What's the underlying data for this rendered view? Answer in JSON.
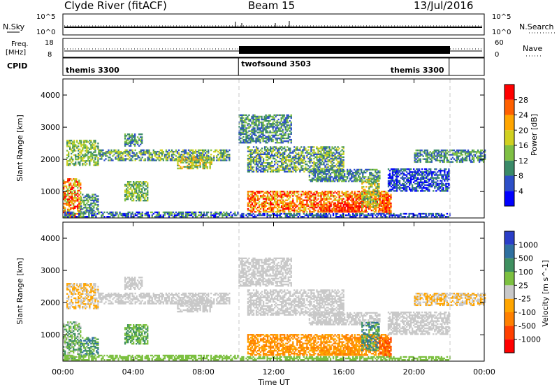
{
  "chart_data": {
    "type": "heatmap",
    "header": {
      "station": "Clyde River (fitACF)",
      "beam": "Beam 15",
      "date": "13/Jul/2016"
    },
    "nsky_panel": {
      "left_label": "N.Sky",
      "left_ticks": [
        "10^5",
        "10^0"
      ],
      "right_label": "N.Search",
      "right_ticks": [
        "10^5",
        "10^0"
      ]
    },
    "freq_panel": {
      "left_label_1": "Freq.",
      "left_label_2": "[MHz]",
      "left_ticks": [
        "18",
        "8"
      ],
      "right_label": "Nave",
      "right_ticks": [
        "60",
        "0"
      ]
    },
    "cpid_panel": {
      "label": "CPID",
      "modes": [
        {
          "name": "themis 3300",
          "start_h": 0,
          "end_h": 10
        },
        {
          "name": "twofsound 3503",
          "start_h": 10,
          "end_h": 22
        },
        {
          "name": "themis 3300",
          "start_h": 22,
          "end_h": 24
        }
      ]
    },
    "x": {
      "label": "Time UT",
      "range_h": [
        0,
        24
      ],
      "ticks": [
        "00:00",
        "04:00",
        "08:00",
        "12:00",
        "16:00",
        "20:00",
        "00:00"
      ]
    },
    "y": {
      "label": "Slant Range [km]",
      "range": [
        180,
        4500
      ],
      "ticks": [
        1000,
        2000,
        3000,
        4000
      ]
    },
    "power": {
      "colorbar_label": "Power [dB]",
      "colorbar_ticks": [
        "4",
        "8",
        "12",
        "16",
        "20",
        "24",
        "28"
      ],
      "colors": [
        "#0000ff",
        "#2d4fc8",
        "#3a8a68",
        "#7fc044",
        "#d0d020",
        "#ffa500",
        "#ff6000",
        "#ff0000"
      ]
    },
    "velocity": {
      "colorbar_label": "Velocity [m s^-1]",
      "colorbar_ticks": [
        "1000",
        "500",
        "100",
        "25",
        "-25",
        "-100",
        "-500",
        "-1000"
      ],
      "colors": [
        "#2a3ec8",
        "#2f70a0",
        "#3f9060",
        "#7cc040",
        "#c8c8c8",
        "#ffa500",
        "#ff8000",
        "#ff4000",
        "#ff0000"
      ]
    },
    "echo_regions": [
      {
        "t0": 0.2,
        "t1": 2.0,
        "r0": 1800,
        "r1": 2600,
        "pw": [
          2,
          4
        ],
        "vel": [
          4,
          5
        ]
      },
      {
        "t0": 2.0,
        "t1": 9.5,
        "r0": 1950,
        "r1": 2300,
        "pw": [
          1,
          4
        ],
        "vel": [
          4,
          4
        ]
      },
      {
        "t0": 6.5,
        "t1": 8.5,
        "r0": 1700,
        "r1": 2100,
        "pw": [
          2,
          5
        ],
        "vel": [
          4,
          4
        ]
      },
      {
        "t0": 3.5,
        "t1": 4.5,
        "r0": 2400,
        "r1": 2800,
        "pw": [
          1,
          3
        ],
        "vel": [
          4,
          4
        ]
      },
      {
        "t0": 0.0,
        "t1": 1.0,
        "r0": 200,
        "r1": 1400,
        "pw": [
          3,
          7
        ],
        "vel": [
          2,
          4
        ]
      },
      {
        "t0": 1.0,
        "t1": 2.0,
        "r0": 300,
        "r1": 900,
        "pw": [
          1,
          3
        ],
        "vel": [
          1,
          3
        ]
      },
      {
        "t0": 3.5,
        "t1": 4.8,
        "r0": 700,
        "r1": 1300,
        "pw": [
          2,
          4
        ],
        "vel": [
          2,
          3
        ]
      },
      {
        "t0": 0.0,
        "t1": 10.0,
        "r0": 200,
        "r1": 350,
        "pw": [
          0,
          3
        ],
        "vel": [
          3,
          3
        ]
      },
      {
        "t0": 10.0,
        "t1": 13.0,
        "r0": 2500,
        "r1": 3400,
        "pw": [
          1,
          3
        ],
        "vel": [
          4,
          4
        ]
      },
      {
        "t0": 10.5,
        "t1": 16.0,
        "r0": 1600,
        "r1": 2400,
        "pw": [
          1,
          4
        ],
        "vel": [
          4,
          4
        ]
      },
      {
        "t0": 14.0,
        "t1": 18.0,
        "r0": 1300,
        "r1": 1700,
        "pw": [
          1,
          3
        ],
        "vel": [
          4,
          4
        ]
      },
      {
        "t0": 10.5,
        "t1": 18.5,
        "r0": 350,
        "r1": 1000,
        "pw": [
          4,
          7
        ],
        "vel": [
          5,
          6
        ]
      },
      {
        "t0": 14.5,
        "t1": 17.0,
        "r0": 350,
        "r1": 650,
        "pw": [
          6,
          7
        ],
        "vel": [
          5,
          6
        ]
      },
      {
        "t0": 17.0,
        "t1": 18.0,
        "r0": 500,
        "r1": 1400,
        "pw": [
          2,
          5
        ],
        "vel": [
          1,
          3
        ]
      },
      {
        "t0": 18.0,
        "t1": 18.7,
        "r0": 300,
        "r1": 900,
        "pw": [
          5,
          7
        ],
        "vel": [
          6,
          7
        ]
      },
      {
        "t0": 18.5,
        "t1": 22.0,
        "r0": 1000,
        "r1": 1700,
        "pw": [
          0,
          2
        ],
        "vel": [
          4,
          4
        ]
      },
      {
        "t0": 20.0,
        "t1": 24.0,
        "r0": 1900,
        "r1": 2300,
        "pw": [
          1,
          3
        ],
        "vel": [
          4,
          5
        ]
      },
      {
        "t0": 10.0,
        "t1": 22.0,
        "r0": 200,
        "r1": 300,
        "pw": [
          0,
          2
        ],
        "vel": [
          3,
          3
        ]
      }
    ]
  }
}
